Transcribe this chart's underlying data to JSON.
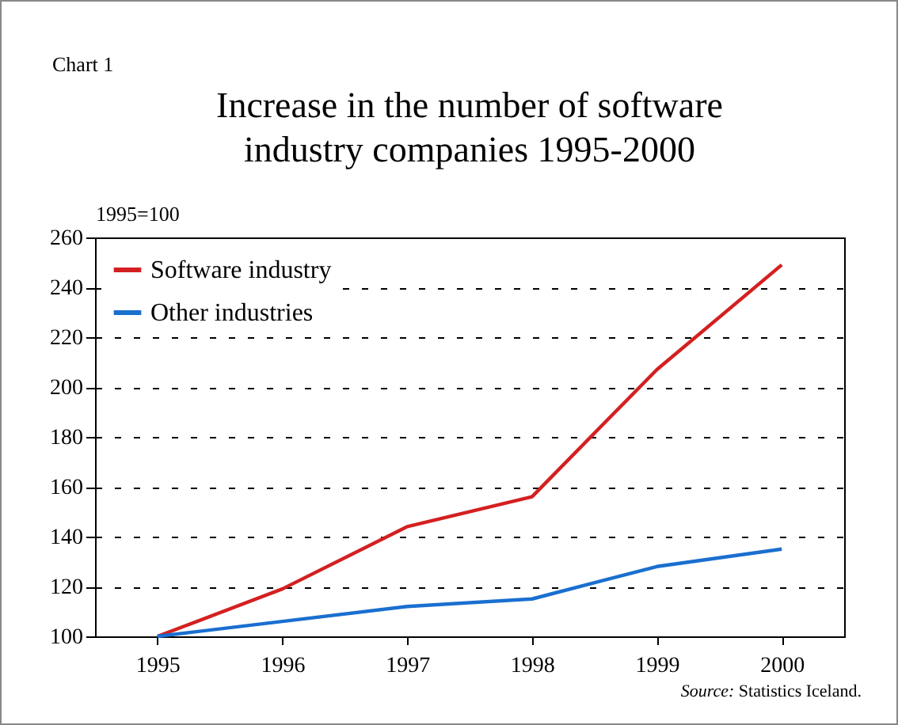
{
  "chart_data": {
    "type": "line",
    "title": "Increase in the number of software industry companies 1995-2000",
    "ylabel": "1995=100",
    "categories": [
      "1995",
      "1996",
      "1997",
      "1998",
      "1999",
      "2000"
    ],
    "series": [
      {
        "name": "Software industry",
        "color": "#d42020",
        "values": [
          100,
          119,
          144,
          156,
          207,
          249
        ]
      },
      {
        "name": "Other industries",
        "color": "#1a6fd0",
        "values": [
          100,
          106,
          112,
          115,
          128,
          135
        ]
      }
    ],
    "ylim": [
      100,
      260
    ],
    "yticks": [
      100,
      120,
      140,
      160,
      180,
      200,
      220,
      240,
      260
    ],
    "grid": "y",
    "legend": "top left",
    "marker": "none",
    "line_style": "solid",
    "annotations": [
      "Chart 1",
      "Source: Statistics Iceland."
    ]
  }
}
